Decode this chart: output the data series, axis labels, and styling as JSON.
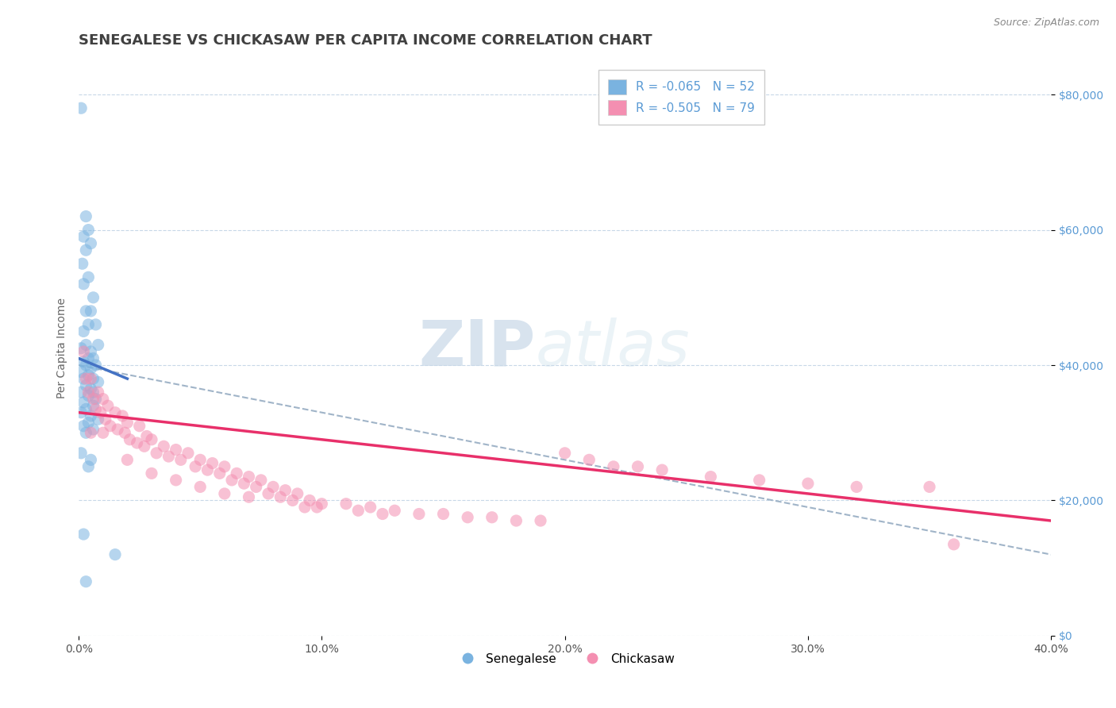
{
  "title": "SENEGALESE VS CHICKASAW PER CAPITA INCOME CORRELATION CHART",
  "source_text": "Source: ZipAtlas.com",
  "ylabel": "Per Capita Income",
  "xlim": [
    0.0,
    40.0
  ],
  "ylim": [
    0,
    85000
  ],
  "ytick_labels": [
    "$0",
    "$20,000",
    "$40,000",
    "$60,000",
    "$80,000"
  ],
  "ytick_values": [
    0,
    20000,
    40000,
    60000,
    80000
  ],
  "xtick_labels": [
    "0.0%",
    "10.0%",
    "20.0%",
    "30.0%",
    "40.0%"
  ],
  "xtick_values": [
    0.0,
    10.0,
    20.0,
    30.0,
    40.0
  ],
  "legend_label_1": "Senegalese",
  "legend_label_2": "Chickasaw",
  "blue_color": "#7ab3e0",
  "pink_color": "#f48fb1",
  "trend_blue": "#4472c4",
  "trend_pink": "#e8306a",
  "trend_gray": "#a0b4c8",
  "watermark_zip": "ZIP",
  "watermark_atlas": "atlas",
  "title_color": "#404040",
  "axis_label_color": "#5b9bd5",
  "background_color": "#ffffff",
  "grid_color": "#c8d8e8",
  "title_fontsize": 13,
  "label_fontsize": 10,
  "tick_fontsize": 10,
  "source_fontsize": 9,
  "blue_scatter": [
    [
      0.1,
      78000
    ],
    [
      0.3,
      62000
    ],
    [
      0.4,
      60000
    ],
    [
      0.2,
      59000
    ],
    [
      0.5,
      58000
    ],
    [
      0.3,
      57000
    ],
    [
      0.15,
      55000
    ],
    [
      0.4,
      53000
    ],
    [
      0.2,
      52000
    ],
    [
      0.6,
      50000
    ],
    [
      0.5,
      48000
    ],
    [
      0.3,
      48000
    ],
    [
      0.7,
      46000
    ],
    [
      0.4,
      46000
    ],
    [
      0.2,
      45000
    ],
    [
      0.8,
      43000
    ],
    [
      0.3,
      43000
    ],
    [
      0.1,
      42500
    ],
    [
      0.5,
      42000
    ],
    [
      0.4,
      41000
    ],
    [
      0.6,
      41000
    ],
    [
      0.2,
      40500
    ],
    [
      0.7,
      40000
    ],
    [
      0.3,
      40000
    ],
    [
      0.5,
      39500
    ],
    [
      0.1,
      39000
    ],
    [
      0.4,
      38500
    ],
    [
      0.6,
      38000
    ],
    [
      0.2,
      38000
    ],
    [
      0.8,
      37500
    ],
    [
      0.3,
      37000
    ],
    [
      0.5,
      36500
    ],
    [
      0.1,
      36000
    ],
    [
      0.4,
      35500
    ],
    [
      0.7,
      35000
    ],
    [
      0.2,
      34500
    ],
    [
      0.6,
      34000
    ],
    [
      0.3,
      33500
    ],
    [
      0.1,
      33000
    ],
    [
      0.5,
      32500
    ],
    [
      0.8,
      32000
    ],
    [
      0.4,
      31500
    ],
    [
      0.2,
      31000
    ],
    [
      0.6,
      30500
    ],
    [
      0.3,
      30000
    ],
    [
      0.1,
      27000
    ],
    [
      0.5,
      26000
    ],
    [
      0.4,
      25000
    ],
    [
      0.2,
      15000
    ],
    [
      1.5,
      12000
    ],
    [
      0.3,
      8000
    ],
    [
      0.6,
      36000
    ]
  ],
  "pink_scatter": [
    [
      0.2,
      42000
    ],
    [
      0.5,
      38000
    ],
    [
      0.3,
      38000
    ],
    [
      0.8,
      36000
    ],
    [
      0.4,
      36000
    ],
    [
      1.0,
      35000
    ],
    [
      0.6,
      35000
    ],
    [
      1.2,
      34000
    ],
    [
      0.7,
      33500
    ],
    [
      1.5,
      33000
    ],
    [
      0.9,
      33000
    ],
    [
      1.8,
      32500
    ],
    [
      1.1,
      32000
    ],
    [
      2.0,
      31500
    ],
    [
      1.3,
      31000
    ],
    [
      2.5,
      31000
    ],
    [
      1.6,
      30500
    ],
    [
      0.5,
      30000
    ],
    [
      1.9,
      30000
    ],
    [
      2.8,
      29500
    ],
    [
      2.1,
      29000
    ],
    [
      3.0,
      29000
    ],
    [
      2.4,
      28500
    ],
    [
      3.5,
      28000
    ],
    [
      2.7,
      28000
    ],
    [
      4.0,
      27500
    ],
    [
      3.2,
      27000
    ],
    [
      4.5,
      27000
    ],
    [
      3.7,
      26500
    ],
    [
      5.0,
      26000
    ],
    [
      4.2,
      26000
    ],
    [
      5.5,
      25500
    ],
    [
      4.8,
      25000
    ],
    [
      6.0,
      25000
    ],
    [
      5.3,
      24500
    ],
    [
      6.5,
      24000
    ],
    [
      5.8,
      24000
    ],
    [
      7.0,
      23500
    ],
    [
      6.3,
      23000
    ],
    [
      7.5,
      23000
    ],
    [
      6.8,
      22500
    ],
    [
      8.0,
      22000
    ],
    [
      7.3,
      22000
    ],
    [
      8.5,
      21500
    ],
    [
      7.8,
      21000
    ],
    [
      9.0,
      21000
    ],
    [
      8.3,
      20500
    ],
    [
      9.5,
      20000
    ],
    [
      8.8,
      20000
    ],
    [
      10.0,
      19500
    ],
    [
      9.3,
      19000
    ],
    [
      11.0,
      19500
    ],
    [
      9.8,
      19000
    ],
    [
      12.0,
      19000
    ],
    [
      11.5,
      18500
    ],
    [
      13.0,
      18500
    ],
    [
      12.5,
      18000
    ],
    [
      14.0,
      18000
    ],
    [
      15.0,
      18000
    ],
    [
      16.0,
      17500
    ],
    [
      17.0,
      17500
    ],
    [
      18.0,
      17000
    ],
    [
      19.0,
      17000
    ],
    [
      20.0,
      27000
    ],
    [
      21.0,
      26000
    ],
    [
      22.0,
      25000
    ],
    [
      23.0,
      25000
    ],
    [
      24.0,
      24500
    ],
    [
      26.0,
      23500
    ],
    [
      28.0,
      23000
    ],
    [
      30.0,
      22500
    ],
    [
      32.0,
      22000
    ],
    [
      35.0,
      22000
    ],
    [
      36.0,
      13500
    ],
    [
      1.0,
      30000
    ],
    [
      2.0,
      26000
    ],
    [
      3.0,
      24000
    ],
    [
      4.0,
      23000
    ],
    [
      5.0,
      22000
    ],
    [
      6.0,
      21000
    ],
    [
      7.0,
      20500
    ]
  ]
}
